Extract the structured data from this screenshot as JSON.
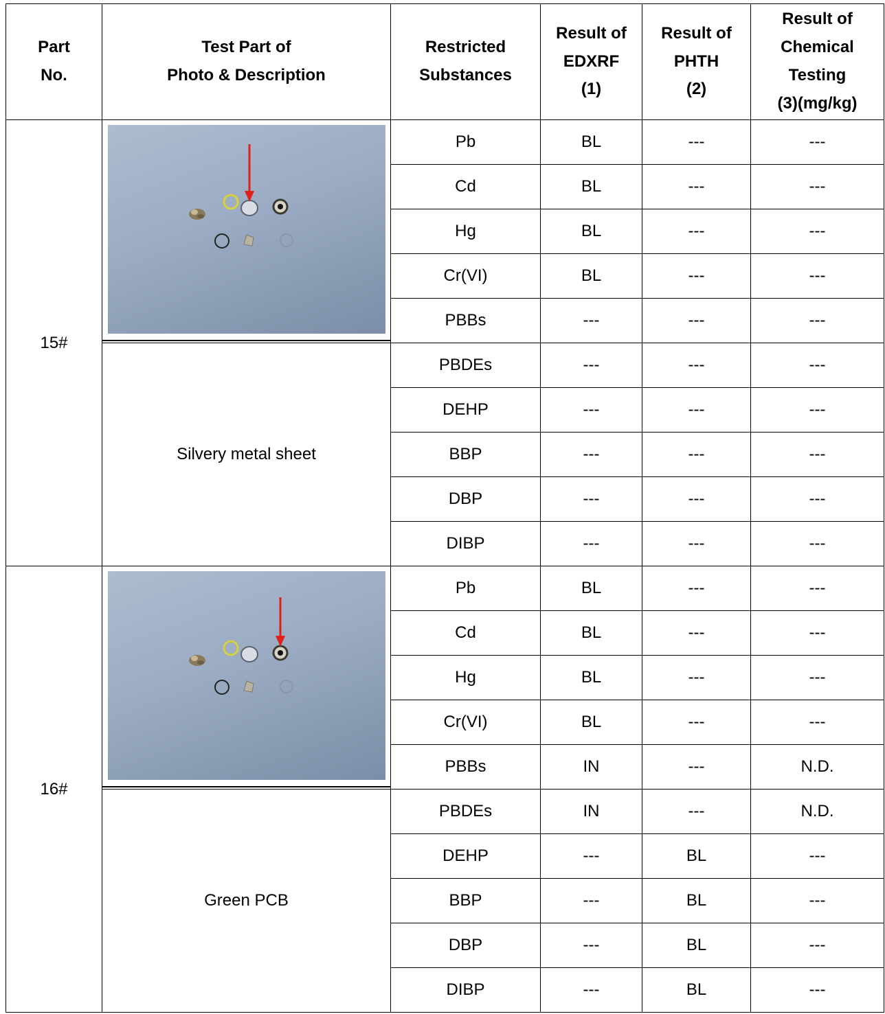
{
  "headers": {
    "part_no": "Part\nNo.",
    "test_part": "Test Part of\nPhoto & Description",
    "substances": "Restricted\nSubstances",
    "edxrf": "Result of\nEDXRF\n(1)",
    "phth": "Result of\nPHTH\n(2)",
    "chemical": "Result of\nChemical\nTesting\n(3)(mg/kg)"
  },
  "parts": [
    {
      "part_no": "15#",
      "description": "Silvery metal sheet",
      "photo_icon": "sample-parts-photo-icon",
      "rows": [
        {
          "substance": "Pb",
          "edxrf": "BL",
          "phth": "---",
          "chem": "---"
        },
        {
          "substance": "Cd",
          "edxrf": "BL",
          "phth": "---",
          "chem": "---"
        },
        {
          "substance": "Hg",
          "edxrf": "BL",
          "phth": "---",
          "chem": "---"
        },
        {
          "substance": "Cr(VI)",
          "edxrf": "BL",
          "phth": "---",
          "chem": "---"
        },
        {
          "substance": "PBBs",
          "edxrf": "---",
          "phth": "---",
          "chem": "---"
        },
        {
          "substance": "PBDEs",
          "edxrf": "---",
          "phth": "---",
          "chem": "---"
        },
        {
          "substance": "DEHP",
          "edxrf": "---",
          "phth": "---",
          "chem": "---"
        },
        {
          "substance": "BBP",
          "edxrf": "---",
          "phth": "---",
          "chem": "---"
        },
        {
          "substance": "DBP",
          "edxrf": "---",
          "phth": "---",
          "chem": "---"
        },
        {
          "substance": "DIBP",
          "edxrf": "---",
          "phth": "---",
          "chem": "---"
        }
      ]
    },
    {
      "part_no": "16#",
      "description": "Green PCB",
      "photo_icon": "sample-parts-photo-icon",
      "rows": [
        {
          "substance": "Pb",
          "edxrf": "BL",
          "phth": "---",
          "chem": "---"
        },
        {
          "substance": "Cd",
          "edxrf": "BL",
          "phth": "---",
          "chem": "---"
        },
        {
          "substance": "Hg",
          "edxrf": "BL",
          "phth": "---",
          "chem": "---"
        },
        {
          "substance": "Cr(VI)",
          "edxrf": "BL",
          "phth": "---",
          "chem": "---"
        },
        {
          "substance": "PBBs",
          "edxrf": "IN",
          "phth": "---",
          "chem": "N.D."
        },
        {
          "substance": "PBDEs",
          "edxrf": "IN",
          "phth": "---",
          "chem": "N.D."
        },
        {
          "substance": "DEHP",
          "edxrf": "---",
          "phth": "BL",
          "chem": "---"
        },
        {
          "substance": "BBP",
          "edxrf": "---",
          "phth": "BL",
          "chem": "---"
        },
        {
          "substance": "DBP",
          "edxrf": "---",
          "phth": "BL",
          "chem": "---"
        },
        {
          "substance": "DIBP",
          "edxrf": "---",
          "phth": "BL",
          "chem": "---"
        }
      ]
    }
  ],
  "colors": {
    "arrow": "#e0201a",
    "photo_background": "#9aabc3"
  }
}
